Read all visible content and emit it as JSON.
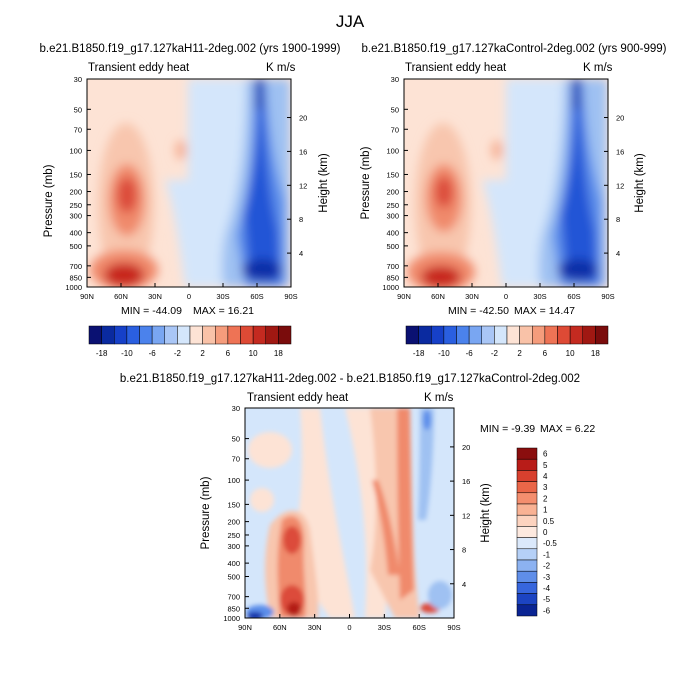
{
  "figure": {
    "title": "JJA"
  },
  "chart_data": [
    {
      "type": "heatmap",
      "title": "b.e21.B1850.f19_g17.127kaH11-2deg.002 (yrs 1900-1999)",
      "left_label": "Transient eddy heat",
      "right_label": "K m/s",
      "xlabel": "",
      "ylabel": "Pressure (mb)",
      "ylabel_right": "Height (km)",
      "x_ticks": [
        "90N",
        "60N",
        "30N",
        "0",
        "30S",
        "60S",
        "90S"
      ],
      "y_ticks": [
        "30",
        "50",
        "70",
        "100",
        "150",
        "200",
        "250",
        "300",
        "400",
        "500",
        "700",
        "850",
        "1000"
      ],
      "y_ticks_right": [
        "20",
        "16",
        "12",
        "8",
        "4"
      ],
      "min_text": "MIN = -44.09",
      "max_text": "MAX =  16.21",
      "colorbar_labels": [
        "-18",
        "-10",
        "-6",
        "-2",
        "2",
        "6",
        "10",
        "18"
      ]
    },
    {
      "type": "heatmap",
      "title": "b.e21.B1850.f19_g17.127kaControl-2deg.002 (yrs 900-999)",
      "left_label": "Transient eddy heat",
      "right_label": "K m/s",
      "xlabel": "",
      "ylabel": "Pressure (mb)",
      "ylabel_right": "Height (km)",
      "x_ticks": [
        "90N",
        "60N",
        "30N",
        "0",
        "30S",
        "60S",
        "90S"
      ],
      "y_ticks": [
        "30",
        "50",
        "70",
        "100",
        "150",
        "200",
        "250",
        "300",
        "400",
        "500",
        "700",
        "850",
        "1000"
      ],
      "y_ticks_right": [
        "20",
        "16",
        "12",
        "8",
        "4"
      ],
      "min_text": "MIN = -42.50",
      "max_text": "MAX =  14.47",
      "colorbar_labels": [
        "-18",
        "-10",
        "-6",
        "-2",
        "2",
        "6",
        "10",
        "18"
      ]
    },
    {
      "type": "heatmap",
      "title": "b.e21.B1850.f19_g17.127kaH11-2deg.002 - b.e21.B1850.f19_g17.127kaControl-2deg.002",
      "left_label": "Transient eddy heat",
      "right_label": "K m/s",
      "xlabel": "",
      "ylabel": "Pressure (mb)",
      "ylabel_right": "Height (km)",
      "x_ticks": [
        "90N",
        "60N",
        "30N",
        "0",
        "30S",
        "60S",
        "90S"
      ],
      "y_ticks": [
        "30",
        "50",
        "70",
        "100",
        "150",
        "200",
        "250",
        "300",
        "400",
        "500",
        "700",
        "850",
        "1000"
      ],
      "y_ticks_right": [
        "20",
        "16",
        "12",
        "8",
        "4"
      ],
      "min_text": "MIN = -9.39",
      "max_text": "MAX =   6.22",
      "colorbar_labels": [
        "6",
        "5",
        "4",
        "3",
        "2",
        "1",
        "0.5",
        "0",
        "-0.5",
        "-1",
        "-2",
        "-3",
        "-4",
        "-5",
        "-6"
      ]
    }
  ]
}
